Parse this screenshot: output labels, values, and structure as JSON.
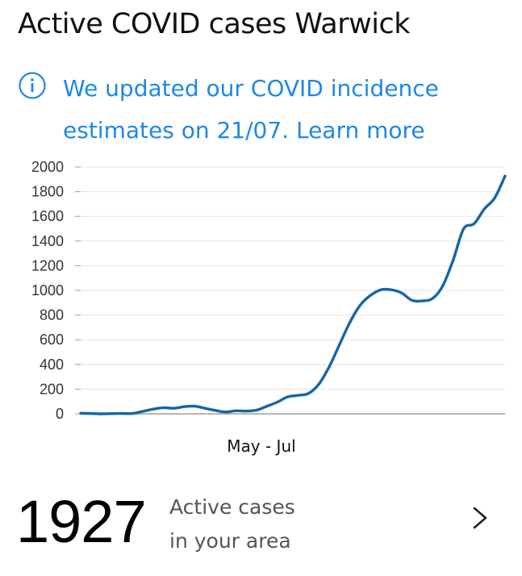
{
  "header": {
    "title": "Active COVID cases Warwick"
  },
  "notice": {
    "icon": "info-icon",
    "text": "We updated our COVID incidence estimates on 21/07. ",
    "link_label": "Learn more",
    "color": "#1e88e5"
  },
  "chart_data": {
    "type": "line",
    "title": "",
    "xlabel": "May - Jul",
    "ylabel": "",
    "ylim": [
      0,
      2000
    ],
    "yticks": [
      0,
      200,
      400,
      600,
      800,
      1000,
      1200,
      1400,
      1600,
      1800,
      2000
    ],
    "grid": true,
    "line_color": "#1565a8",
    "series": [
      {
        "values": [
          5,
          3,
          0,
          2,
          3,
          3,
          20,
          38,
          50,
          45,
          58,
          62,
          45,
          28,
          15,
          25,
          22,
          30,
          62,
          95,
          138,
          150,
          165,
          240,
          380,
          560,
          740,
          880,
          960,
          1005,
          1005,
          980,
          920,
          915,
          935,
          1040,
          1250,
          1500,
          1540,
          1660,
          1750,
          1927
        ]
      }
    ]
  },
  "summary": {
    "value": "1927",
    "label_line1": "Active cases",
    "label_line2": "in your area",
    "chevron_icon": "chevron-right-icon"
  }
}
